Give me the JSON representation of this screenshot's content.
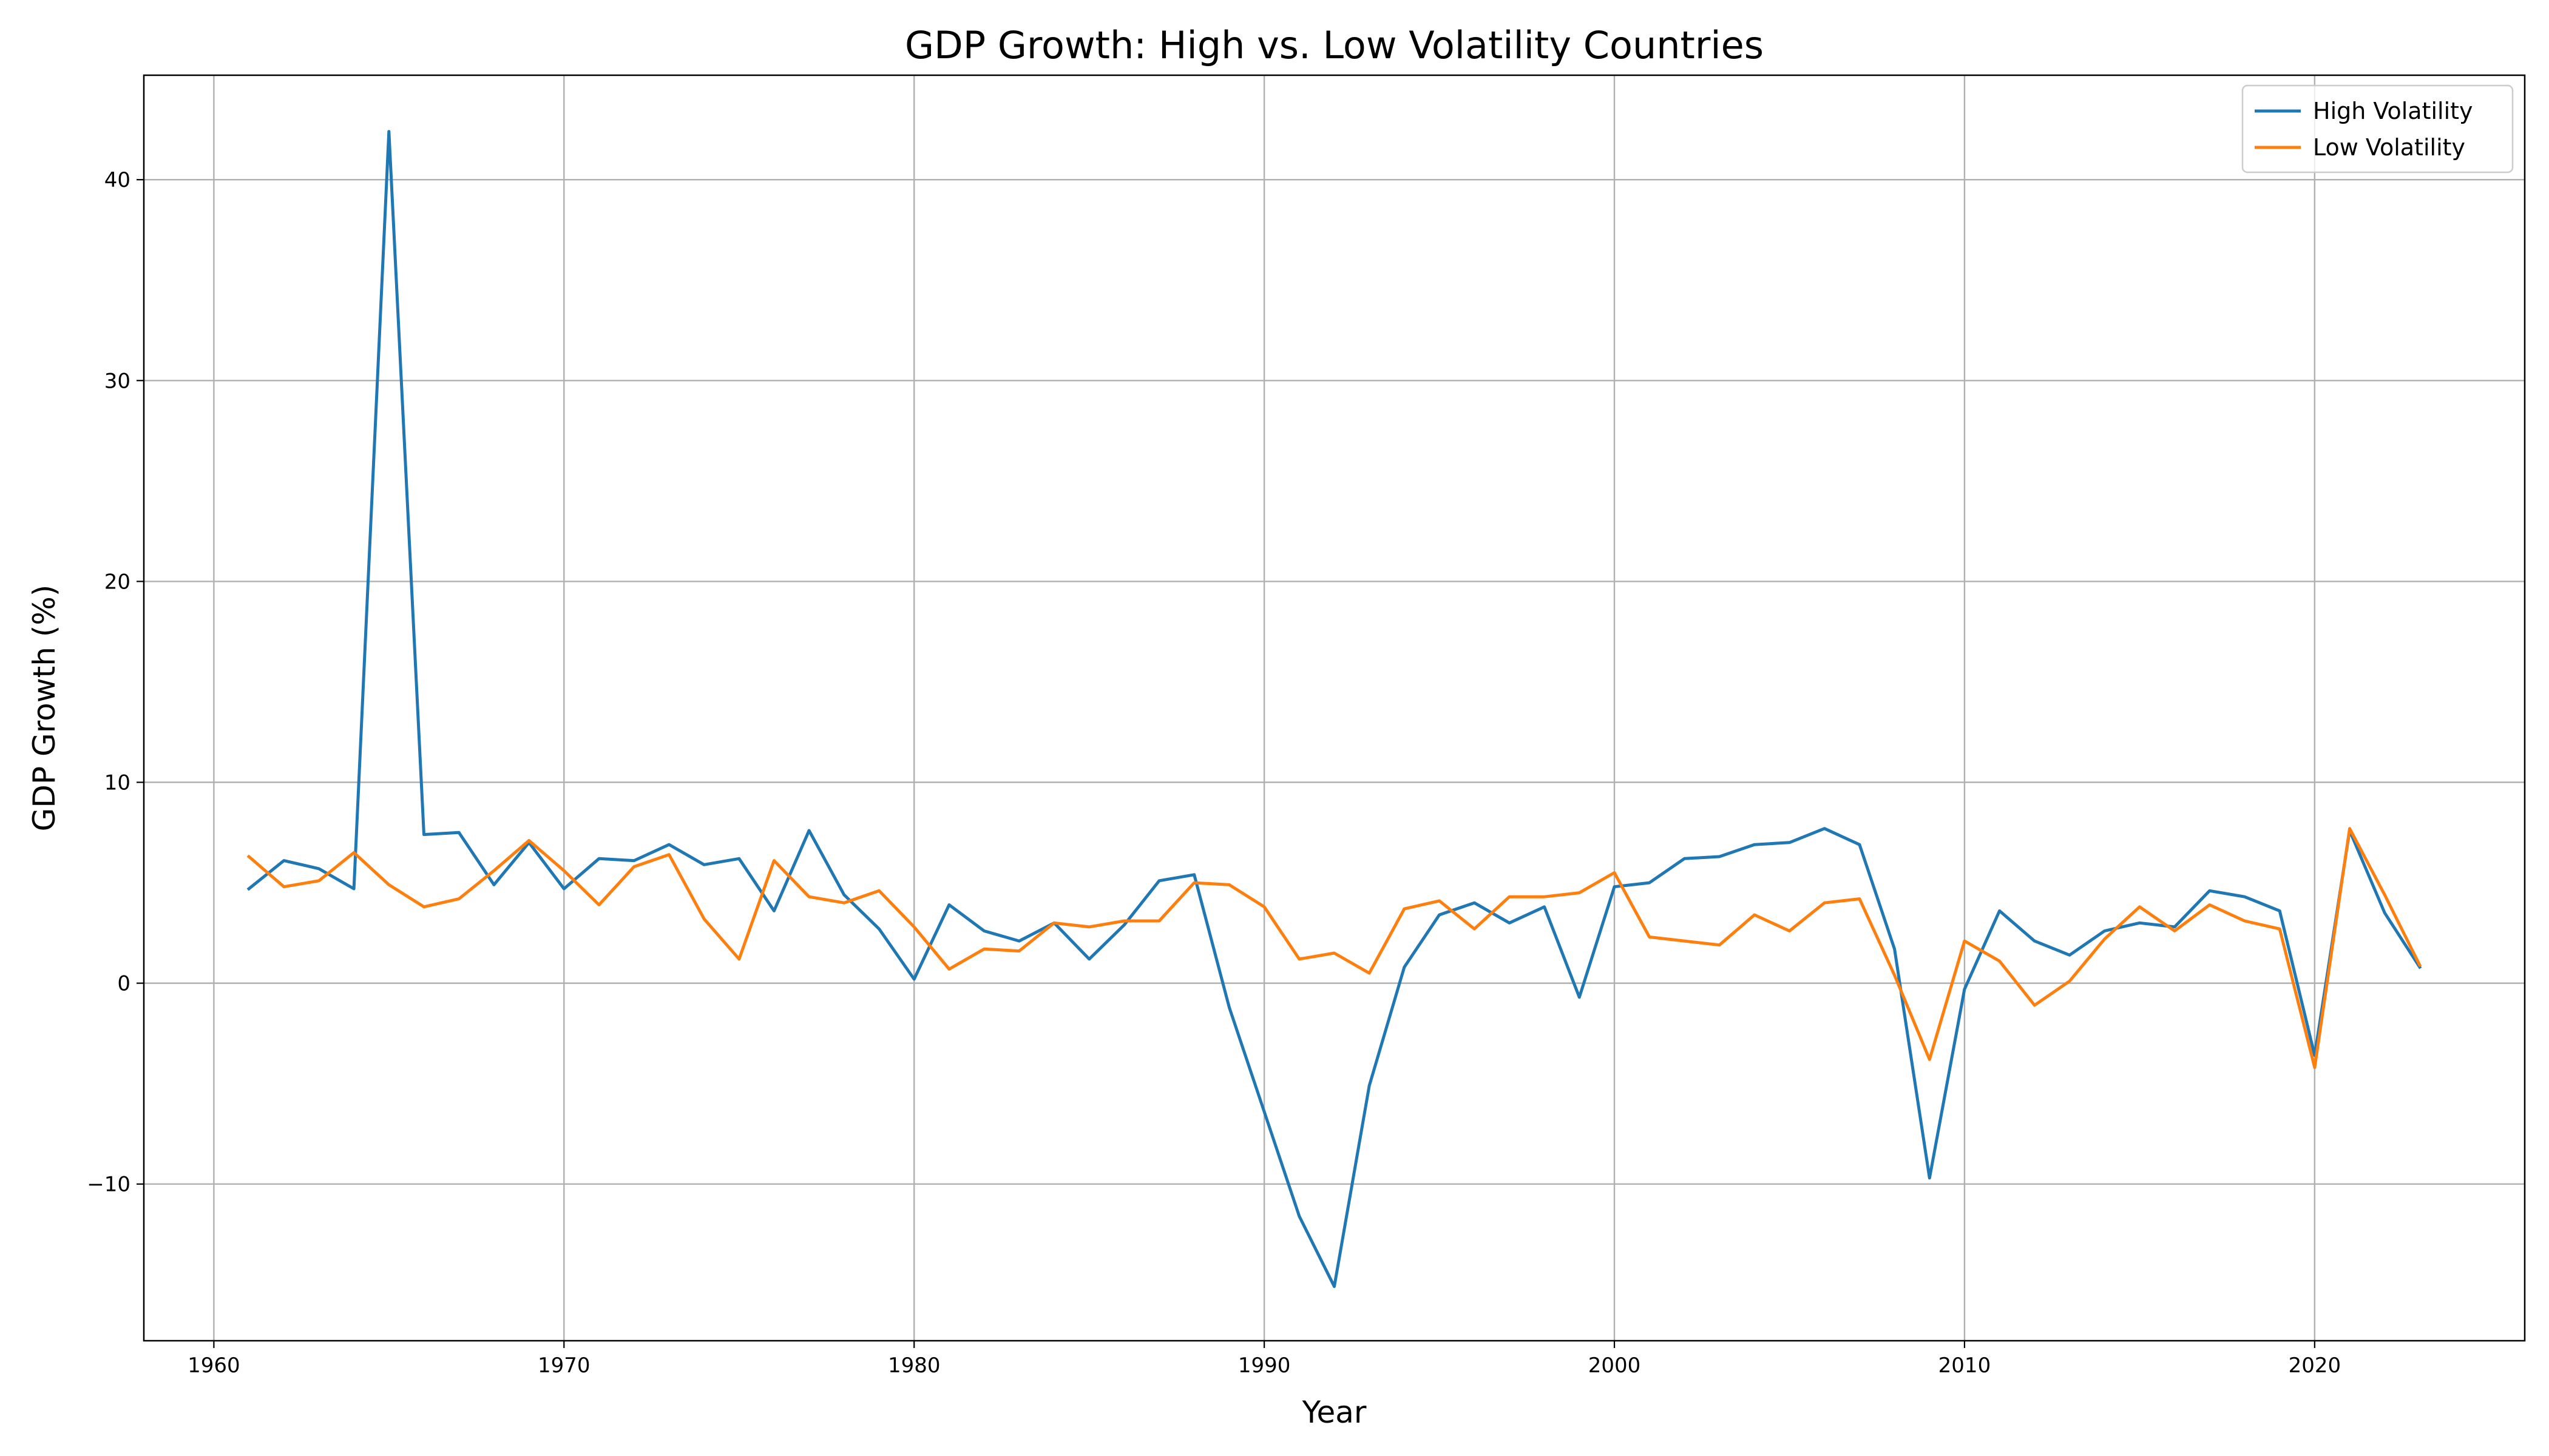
{
  "chart_data": {
    "type": "line",
    "title": "GDP Growth: High vs. Low Volatility Countries",
    "xlabel": "Year",
    "ylabel": "GDP Growth (%)",
    "xlim": [
      1958,
      2026
    ],
    "ylim": [
      -17.8,
      45.2
    ],
    "xticks": [
      1960,
      1970,
      1980,
      1990,
      2000,
      2010,
      2020
    ],
    "yticks": [
      -10,
      0,
      10,
      20,
      30,
      40
    ],
    "ytick_labels": [
      "−10",
      "0",
      "10",
      "20",
      "30",
      "40"
    ],
    "grid": true,
    "legend_position": "top-right",
    "x": [
      1961,
      1962,
      1963,
      1964,
      1965,
      1966,
      1967,
      1968,
      1969,
      1970,
      1971,
      1972,
      1973,
      1974,
      1975,
      1976,
      1977,
      1978,
      1979,
      1980,
      1981,
      1982,
      1983,
      1984,
      1985,
      1986,
      1987,
      1988,
      1989,
      1990,
      1991,
      1992,
      1993,
      1994,
      1995,
      1996,
      1997,
      1998,
      1999,
      2000,
      2001,
      2002,
      2003,
      2004,
      2005,
      2006,
      2007,
      2008,
      2009,
      2010,
      2011,
      2012,
      2013,
      2014,
      2015,
      2016,
      2017,
      2018,
      2019,
      2020,
      2021,
      2022,
      2023
    ],
    "series": [
      {
        "name": "High Volatility",
        "color": "#1f77b4",
        "values": [
          4.7,
          6.1,
          5.7,
          4.7,
          42.4,
          7.4,
          7.5,
          4.9,
          7.0,
          4.7,
          6.2,
          6.1,
          6.9,
          5.9,
          6.2,
          3.6,
          7.6,
          4.4,
          2.7,
          0.2,
          3.9,
          2.6,
          2.1,
          3.0,
          1.2,
          2.9,
          5.1,
          5.4,
          -1.2,
          -6.4,
          -11.6,
          -15.1,
          -5.1,
          0.8,
          3.4,
          4.0,
          3.0,
          3.8,
          -0.7,
          4.8,
          5.0,
          6.2,
          6.3,
          6.9,
          7.0,
          7.7,
          6.9,
          1.7,
          -9.7,
          -0.3,
          3.6,
          2.1,
          1.4,
          2.6,
          3.0,
          2.8,
          4.6,
          4.3,
          3.6,
          -3.6,
          7.6,
          3.5,
          0.8
        ]
      },
      {
        "name": "Low Volatility",
        "color": "#ff7f0e",
        "values": [
          6.3,
          4.8,
          5.1,
          6.5,
          4.9,
          3.8,
          4.2,
          5.6,
          7.1,
          5.6,
          3.9,
          5.8,
          6.4,
          3.2,
          1.2,
          6.1,
          4.3,
          4.0,
          4.6,
          2.8,
          0.7,
          1.7,
          1.6,
          3.0,
          2.8,
          3.1,
          3.1,
          5.0,
          4.9,
          3.8,
          1.2,
          1.5,
          0.5,
          3.7,
          4.1,
          2.7,
          4.3,
          4.3,
          4.5,
          5.5,
          2.3,
          2.1,
          1.9,
          3.4,
          2.6,
          4.0,
          4.2,
          0.4,
          -3.8,
          2.1,
          1.1,
          -1.1,
          0.1,
          2.2,
          3.8,
          2.6,
          3.9,
          3.1,
          2.7,
          -4.2,
          7.7,
          4.4,
          0.9
        ]
      }
    ]
  }
}
